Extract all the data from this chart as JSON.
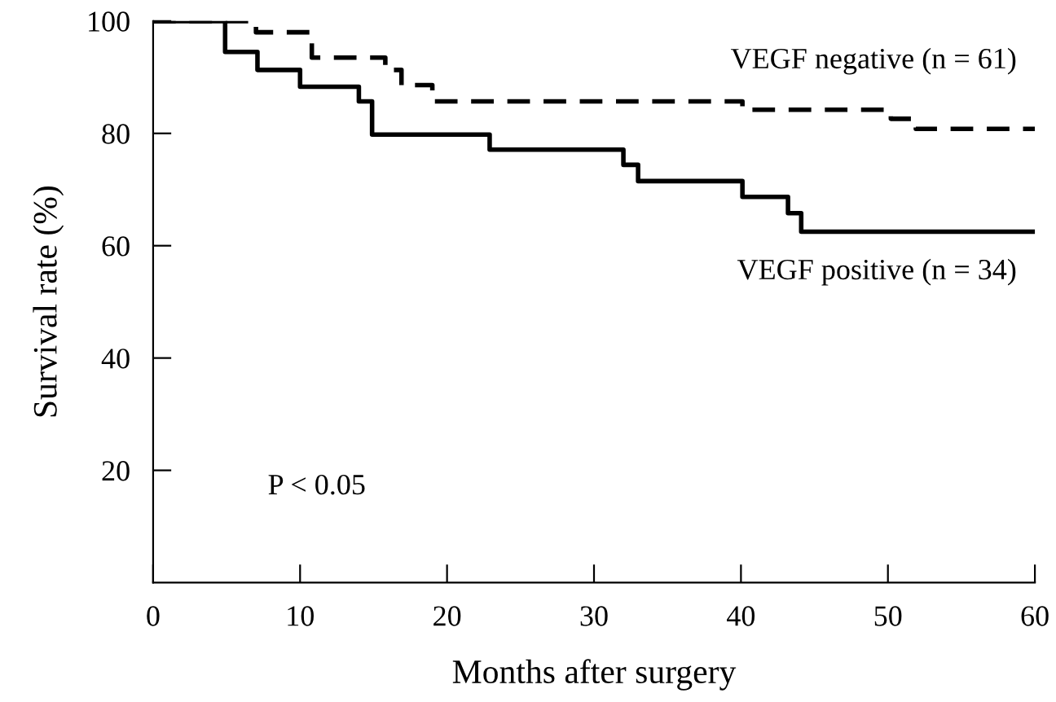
{
  "chart_data": {
    "type": "step",
    "xlabel": "Months after surgery",
    "ylabel": "Survival rate (%)",
    "xlim": [
      0,
      60
    ],
    "ylim": [
      0,
      100
    ],
    "xticks": [
      0,
      10,
      20,
      30,
      40,
      50,
      60
    ],
    "yticks": [
      20,
      40,
      60,
      80,
      100
    ],
    "grid": false,
    "legend": false,
    "marker": "none",
    "annotations": [
      "P < 0.05"
    ],
    "series": [
      {
        "name": "VEGF negative (n = 61)",
        "color": "#000000",
        "line_style": "dashed",
        "x": [
          0,
          7,
          10.8,
          15.8,
          16.9,
          19.0,
          40.1,
          50.2,
          51.9,
          60
        ],
        "values": [
          100,
          98,
          93.5,
          91.3,
          88.6,
          85.7,
          84.2,
          82.6,
          80.8,
          80.8
        ]
      },
      {
        "name": "VEGF positive (n = 34)",
        "color": "#000000",
        "line_style": "solid",
        "x": [
          0,
          4.9,
          7.1,
          10.0,
          14.0,
          14.9,
          22.9,
          32.0,
          33.0,
          40.1,
          43.2,
          44.1,
          60
        ],
        "values": [
          100,
          94.5,
          91.3,
          88.3,
          85.7,
          79.8,
          77.1,
          74.4,
          71.5,
          68.7,
          65.8,
          62.5,
          62.5
        ]
      }
    ]
  }
}
